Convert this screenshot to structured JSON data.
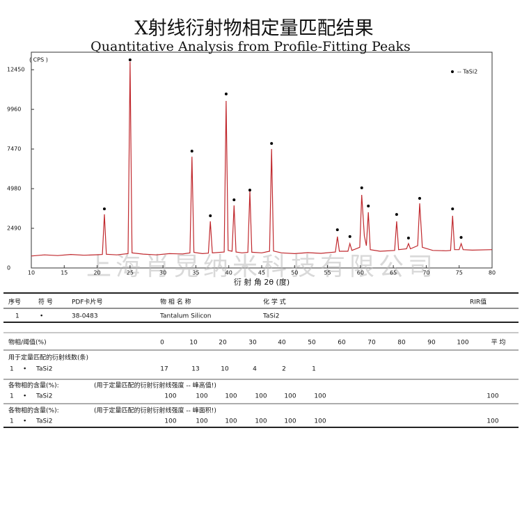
{
  "chart_data": {
    "type": "line",
    "title": "X射线衍射物相定量匹配结果",
    "subtitle": "Quantitative Analysis from Profile-Fitting Peaks",
    "y_label": "( CPS )",
    "x_label": "衍 射 角 2θ (度)",
    "watermark": "上海肖晃纳米科技有限公司",
    "xlim": [
      10,
      80
    ],
    "ylim": [
      0,
      13550
    ],
    "xticks": [
      10,
      15,
      20,
      25,
      30,
      35,
      40,
      45,
      50,
      55,
      60,
      65,
      70,
      75,
      80
    ],
    "yticks": [
      0,
      2490,
      4980,
      7470,
      9960,
      12450
    ],
    "line": {
      "color": "#c0282d",
      "x": [
        10,
        12,
        14,
        16,
        18,
        20,
        20.8,
        21.1,
        21.4,
        23,
        24.7,
        25.0,
        25.3,
        27,
        29,
        31,
        33,
        34.1,
        34.4,
        34.7,
        36,
        36.9,
        37.2,
        37.5,
        39.3,
        39.6,
        39.9,
        40.5,
        40.8,
        41.1,
        42,
        42.9,
        43.2,
        43.5,
        45,
        46.2,
        46.5,
        46.8,
        48,
        50,
        52,
        54,
        56.2,
        56.5,
        56.8,
        58.1,
        58.4,
        58.7,
        59.9,
        60.2,
        60.6,
        60.9,
        61.2,
        61.5,
        63,
        65.2,
        65.5,
        65.8,
        67,
        67.3,
        67.6,
        68.7,
        69.0,
        69.4,
        71,
        73,
        73.7,
        74.0,
        74.3,
        75.0,
        75.3,
        75.6,
        77,
        80
      ],
      "values": [
        750,
        820,
        780,
        850,
        800,
        830,
        850,
        3370,
        860,
        820,
        900,
        12950,
        950,
        870,
        820,
        900,
        880,
        950,
        6990,
        980,
        900,
        930,
        2930,
        950,
        1000,
        10490,
        1100,
        1050,
        3930,
        1000,
        950,
        980,
        4810,
        990,
        950,
        1050,
        7470,
        1060,
        950,
        900,
        960,
        920,
        1000,
        1970,
        1050,
        1050,
        1530,
        1100,
        1300,
        4590,
        2000,
        1400,
        3500,
        1150,
        1050,
        1100,
        2930,
        1150,
        1200,
        1530,
        1200,
        1400,
        4060,
        1300,
        1100,
        1080,
        1100,
        3280,
        1150,
        1150,
        1530,
        1150,
        1120,
        1150
      ]
    },
    "markers": {
      "name": "-- TaSi2",
      "color": "#000000",
      "x": [
        21.1,
        25.0,
        34.4,
        37.2,
        39.6,
        40.8,
        43.2,
        46.5,
        56.5,
        58.4,
        60.2,
        61.2,
        65.5,
        67.3,
        69.0,
        74.0,
        75.3
      ],
      "values": [
        3710,
        13070,
        7340,
        3280,
        10930,
        4280,
        4890,
        7820,
        2400,
        1970,
        5030,
        3890,
        3360,
        1880,
        4370,
        3710,
        1920
      ]
    }
  },
  "table": {
    "header": [
      "序号",
      "符 号",
      "PDF卡片号",
      "物 相 名 称",
      "化 学 式",
      "RIR值"
    ],
    "row": [
      "1",
      "•",
      "38-0483",
      "Tantalum Silicon",
      "TaSi2"
    ]
  },
  "thresholds": {
    "label": "物相/阈值(%)",
    "values": [
      0,
      10,
      20,
      30,
      40,
      50,
      60,
      70,
      80,
      90,
      100
    ],
    "average_label": "平 均"
  },
  "line_counts": {
    "label": "用于定量匹配的衍射线数(条)",
    "index": "1",
    "symbol": "•",
    "phase": "TaSi2",
    "values": [
      17,
      13,
      10,
      4,
      2,
      1
    ]
  },
  "content_height": {
    "label": "各物相的含量(%):",
    "note": "(用于定量匹配的衍射衍射线强度 -- 峰高值!)",
    "index": "1",
    "symbol": "•",
    "phase": "TaSi2",
    "values": [
      100,
      100,
      100,
      100,
      100,
      100
    ],
    "average": 100
  },
  "content_area": {
    "label": "各物相的含量(%):",
    "note": "(用于定量匹配的衍射衍射线强度 -- 峰面积!)",
    "index": "1",
    "symbol": "•",
    "phase": "TaSi2",
    "values": [
      100,
      100,
      100,
      100,
      100,
      100
    ],
    "average": 100
  }
}
